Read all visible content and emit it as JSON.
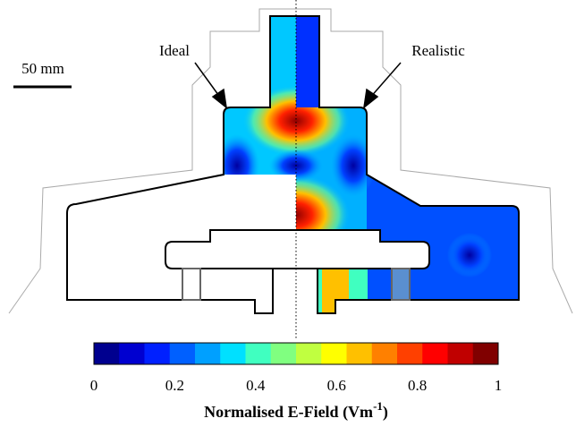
{
  "labels": {
    "ideal": "Ideal",
    "realistic": "Realistic",
    "scale": "50 mm"
  },
  "colorbar": {
    "lim": [
      0,
      1
    ],
    "ticks": [
      0,
      0.2,
      0.4,
      0.6,
      0.8,
      1
    ],
    "colors": [
      "#00008f",
      "#0000d0",
      "#0020ff",
      "#0060ff",
      "#00a0ff",
      "#00e0ff",
      "#40ffc0",
      "#80ff80",
      "#c0ff40",
      "#ffff00",
      "#ffc000",
      "#ff8000",
      "#ff4000",
      "#ff0000",
      "#c00000",
      "#800000"
    ],
    "label": [
      "Normalised E-Field (Vm",
      "-1",
      ")"
    ]
  }
}
